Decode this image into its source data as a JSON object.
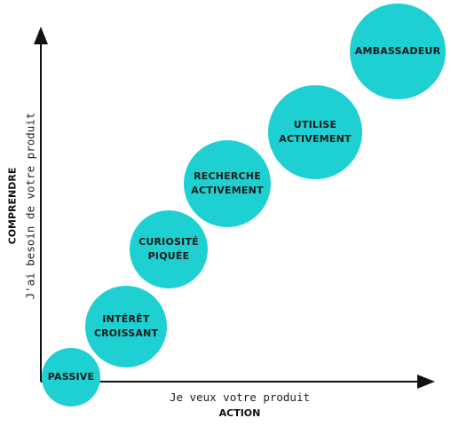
{
  "colors": {
    "circle_fill": "#1fd0d2",
    "axis": "#111111"
  },
  "axes": {
    "x_title": "ACTION",
    "x_subtitle": "Je veux votre produit",
    "y_title": "COMPRENDRE",
    "y_subtitle": "J'ai besoin de votre produit"
  },
  "stages": [
    {
      "label": "PASSIVE"
    },
    {
      "label": "INTÉRÊT\nCROISSANT"
    },
    {
      "label": "CURIOSITÉ\nPIQUÉE"
    },
    {
      "label": "RECHERCHE\nACTIVEMENT"
    },
    {
      "label": "UTILISE\nACTIVEMENT"
    },
    {
      "label": "AMBASSADEUR"
    }
  ]
}
